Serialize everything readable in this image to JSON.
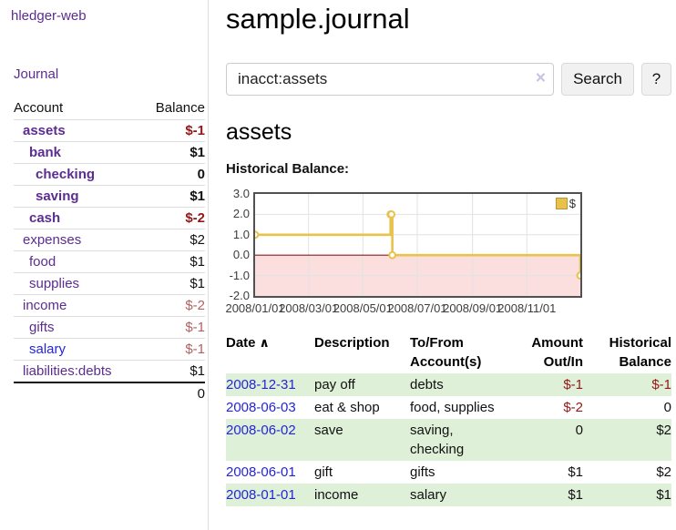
{
  "colors": {
    "link_purple": "#5b2d90",
    "link_blue": "#2525d8",
    "negative_red": "#971616",
    "negative_soft_red": "#b26060",
    "row_highlight_green": "#dff0d8",
    "chart_line_gold": "#e9c24b",
    "chart_negative_pink": "#fbdede",
    "chart_zero_line_red": "#8b1c1c"
  },
  "sidebar": {
    "brand": "hledger-web",
    "nav": {
      "journal_label": "Journal"
    },
    "accounts_table": {
      "account_header": "Account",
      "balance_header": "Balance",
      "rows": [
        {
          "name": "assets",
          "balance": "$-1",
          "depth": 1,
          "bold": true,
          "negative": true
        },
        {
          "name": "bank",
          "balance": "$1",
          "depth": 2,
          "bold": true,
          "negative": false
        },
        {
          "name": "checking",
          "balance": "0",
          "depth": 3,
          "bold": true,
          "negative": false
        },
        {
          "name": "saving",
          "balance": "$1",
          "depth": 3,
          "bold": true,
          "negative": false
        },
        {
          "name": "cash",
          "balance": "$-2",
          "depth": 2,
          "bold": true,
          "negative": true
        },
        {
          "name": "expenses",
          "balance": "$2",
          "depth": 1,
          "bold": false,
          "negative": false
        },
        {
          "name": "food",
          "balance": "$1",
          "depth": 2,
          "bold": false,
          "negative": false
        },
        {
          "name": "supplies",
          "balance": "$1",
          "depth": 2,
          "bold": false,
          "negative": false
        },
        {
          "name": "income",
          "balance": "$-2",
          "depth": 1,
          "bold": false,
          "negative": true
        },
        {
          "name": "gifts",
          "balance": "$-1",
          "depth": 2,
          "bold": false,
          "negative": true
        },
        {
          "name": "salary",
          "balance": "$-1",
          "depth": 2,
          "bold": false,
          "negative": true,
          "unvisited": true
        },
        {
          "name": "liabilities:debts",
          "balance": "$1",
          "depth": 1,
          "bold": false,
          "negative": false
        }
      ],
      "total": "0"
    }
  },
  "header": {
    "title": "sample.journal"
  },
  "search": {
    "query": "inacct:assets",
    "clear_icon": "×",
    "button_label": "Search",
    "help_label": "?"
  },
  "account_page": {
    "heading": "assets",
    "chart_label": "Historical Balance:"
  },
  "chart_data": {
    "type": "line",
    "step": true,
    "title": "Historical Balance:",
    "legend": "$",
    "legend_position": "top-right",
    "grid": true,
    "xlim": [
      "2008-01-01",
      "2008-12-31"
    ],
    "ylim": [
      -2,
      3
    ],
    "y_ticks": [
      "3.0",
      "2.0",
      "1.0",
      "0.0",
      "-1.0",
      "-2.0"
    ],
    "x_ticks": [
      "2008/01/01",
      "2008/03/01",
      "2008/05/01",
      "2008/07/01",
      "2008/09/01",
      "2008/11/01"
    ],
    "series": [
      {
        "name": "$",
        "points": [
          [
            "2008-01-01",
            1
          ],
          [
            "2008-06-01",
            2
          ],
          [
            "2008-06-02",
            2
          ],
          [
            "2008-06-03",
            0
          ],
          [
            "2008-12-31",
            -1
          ]
        ]
      }
    ],
    "negative_region_shaded": true
  },
  "register": {
    "columns": {
      "date": "Date",
      "sort_icon": "∧",
      "description": "Description",
      "accounts": "To/From Account(s)",
      "amount": "Amount Out/In",
      "balance": "Historical Balance"
    },
    "rows": [
      {
        "date": "2008-12-31",
        "description": "pay off",
        "accounts": "debts",
        "amount": "$-1",
        "balance": "$-1",
        "amount_neg": true,
        "balance_neg": true,
        "highlight": true
      },
      {
        "date": "2008-06-03",
        "description": "eat & shop",
        "accounts": "food, supplies",
        "amount": "$-2",
        "balance": "0",
        "amount_neg": true,
        "balance_neg": false,
        "highlight": false
      },
      {
        "date": "2008-06-02",
        "description": "save",
        "accounts": "saving, checking",
        "amount": "0",
        "balance": "$2",
        "amount_neg": false,
        "balance_neg": false,
        "highlight": true
      },
      {
        "date": "2008-06-01",
        "description": "gift",
        "accounts": "gifts",
        "amount": "$1",
        "balance": "$2",
        "amount_neg": false,
        "balance_neg": false,
        "highlight": false
      },
      {
        "date": "2008-01-01",
        "description": "income",
        "accounts": "salary",
        "amount": "$1",
        "balance": "$1",
        "amount_neg": false,
        "balance_neg": false,
        "highlight": true
      }
    ]
  }
}
